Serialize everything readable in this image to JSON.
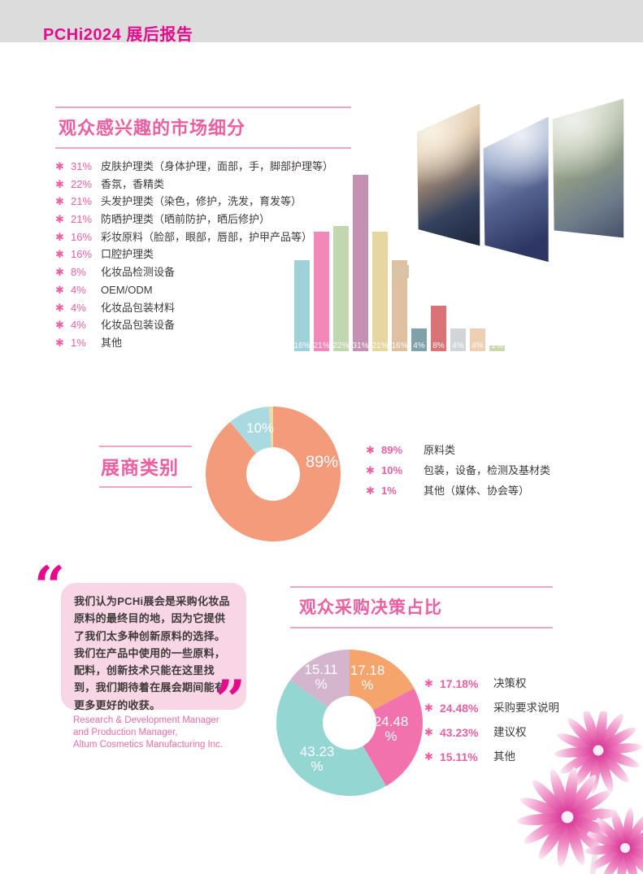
{
  "colors": {
    "header_bg": "#dcdcdc",
    "accent_magenta": "#e60a8c",
    "accent_pink": "#ee5fa2",
    "line_pink": "#f4a3c6",
    "text_dark": "#3e3a39",
    "quote_bg": "#f8d6e5"
  },
  "header": {
    "title": "PCHi2024 展后报告"
  },
  "bullet_icon": "✱",
  "section_market": {
    "title": "观众感兴趣的市场细分",
    "items": [
      {
        "pct": "31%",
        "label": "皮肤护理类（身体护理，面部，手，脚部护理等）"
      },
      {
        "pct": "22%",
        "label": "香氛，香精类"
      },
      {
        "pct": "21%",
        "label": "头发护理类（染色，修护，洗发，育发等）"
      },
      {
        "pct": "21%",
        "label": "防晒护理类（晒前防护，晒后修护）"
      },
      {
        "pct": "16%",
        "label": "彩妆原料（脸部，眼部，唇部，护甲产品等）"
      },
      {
        "pct": "16%",
        "label": "口腔护理类"
      },
      {
        "pct": "8%",
        "label": "化妆品检测设备"
      },
      {
        "pct": "4%",
        "label": "OEM/ODM"
      },
      {
        "pct": "4%",
        "label": "化妆品包装材料"
      },
      {
        "pct": "4%",
        "label": "化妆品包装设备"
      },
      {
        "pct": "1%",
        "label": "其他"
      }
    ]
  },
  "section_exhibitor": {
    "title": "展商类别",
    "legend": [
      {
        "pct": "89%",
        "label": "原料类"
      },
      {
        "pct": "10%",
        "label": "包装，设备，检测及基材类"
      },
      {
        "pct": "1%",
        "label": "其他（媒体、协会等）"
      }
    ]
  },
  "quote": {
    "open_mark": "“",
    "close_mark": "”",
    "text": "我们认为PCHi展会是采购化妆品原料的最终目的地，因为它提供了我们太多种创新原料的选择。我们在产品中使用的一些原料，配料，创新技术只能在这里找到，我们期待着在展会期间能有更多更好的收获。",
    "attribution_lines": [
      "Research & Development Manager",
      "and Production Manager,",
      "Altum Cosmetics Manufacturing Inc."
    ]
  },
  "section_decision": {
    "title": "观众采购决策占比",
    "legend": [
      {
        "pct": "17.18%",
        "label": "决策权"
      },
      {
        "pct": "24.48%",
        "label": "采购要求说明"
      },
      {
        "pct": "43.23%",
        "label": "建议权"
      },
      {
        "pct": "15.11%",
        "label": "其他"
      }
    ]
  },
  "chart_data": [
    {
      "type": "bar",
      "title": "观众感兴趣的市场细分",
      "categories": [
        "16%",
        "21%",
        "22%",
        "31%",
        "21%",
        "16%",
        "4%",
        "8%",
        "4%",
        "4%",
        "1%"
      ],
      "values": [
        16,
        21,
        22,
        31,
        21,
        16,
        4,
        8,
        4,
        4,
        1
      ],
      "bar_labels": [
        "16%",
        "21%",
        "22%",
        "31%",
        "21%",
        "16%",
        "4%",
        "8%",
        "4%",
        "4%",
        "1%"
      ],
      "colors": [
        "#9fd2d8",
        "#f287b8",
        "#c2d6b0",
        "#c391b2",
        "#e6d7a0",
        "#dfc0a0",
        "#7fa2a8",
        "#d97376",
        "#d2d5d8",
        "#edcfb4",
        "#ccd9ae"
      ],
      "unit": "%",
      "ylim": [
        0,
        31
      ],
      "grid": false,
      "legend_position": "none",
      "bar_label_position": "inside-bottom"
    },
    {
      "type": "pie",
      "variant": "donut",
      "title": "展商类别",
      "categories": [
        "原料类",
        "包装，设备，检测及基材类",
        "其他（媒体、协会等）"
      ],
      "values": [
        89,
        10,
        1
      ],
      "slice_label_lines": [
        [
          "89%"
        ],
        [
          "10%"
        ],
        []
      ],
      "colors": [
        "#f49b7b",
        "#a9d9e1",
        "#eedca6"
      ],
      "start_angle_deg": 0,
      "direction": "clockwise",
      "legend_position": "right"
    },
    {
      "type": "pie",
      "variant": "donut",
      "title": "观众采购决策占比",
      "categories": [
        "决策权",
        "采购要求说明",
        "建议权",
        "其他"
      ],
      "values": [
        17.18,
        24.48,
        43.23,
        15.11
      ],
      "slice_label_lines": [
        [
          "17.18",
          "%"
        ],
        [
          "24.48",
          "%"
        ],
        [
          "43.23",
          "%"
        ],
        [
          "15.11",
          "%"
        ]
      ],
      "colors": [
        "#f5a46b",
        "#f172ac",
        "#94d6d2",
        "#d3b5cd"
      ],
      "start_angle_deg": 0,
      "direction": "clockwise",
      "legend_position": "right"
    }
  ]
}
